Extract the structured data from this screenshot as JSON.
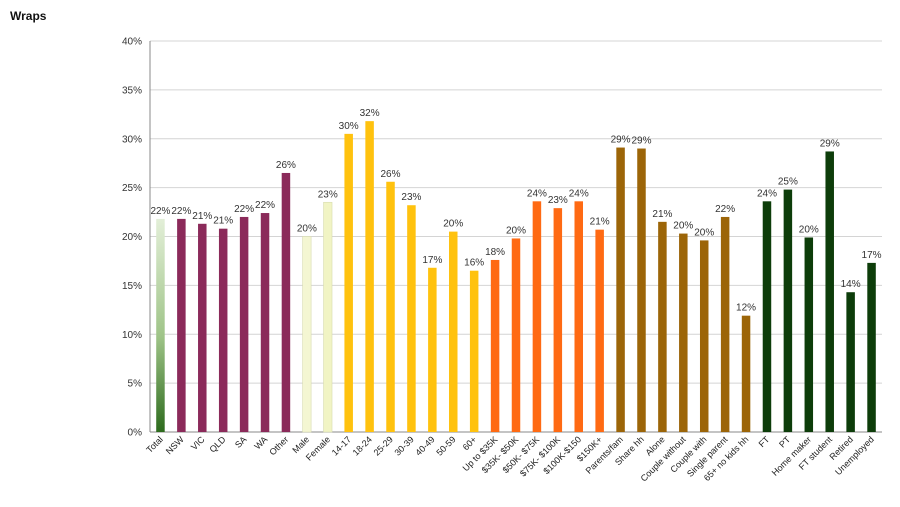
{
  "chart_data": {
    "type": "bar",
    "title": "Wraps",
    "xlabel": "",
    "ylabel": "",
    "ylim": [
      0,
      40
    ],
    "yticks": [
      "0%",
      "5%",
      "10%",
      "15%",
      "20%",
      "25%",
      "30%",
      "35%",
      "40%"
    ],
    "grid": true,
    "legend": "none",
    "categories": [
      "Total",
      "NSW",
      "VIC",
      "QLD",
      "SA",
      "WA",
      "Other",
      "Male",
      "Female",
      "14-17",
      "18-24",
      "25-29",
      "30-39",
      "40-49",
      "50-59",
      "60+",
      "Up to $35K",
      "$35K- $50K",
      "$50K- $75K",
      "$75K- $100K",
      "$100K-$150",
      "$150K+",
      "Parents/fam",
      "Share hh",
      "Alone",
      "Couple without",
      "Couple with",
      "Single parent",
      "65+ no kids hh",
      "FT",
      "PT",
      "Home maker",
      "FT student",
      "Retired",
      "Unemployed"
    ],
    "values": [
      21.8,
      21.8,
      21.3,
      20.8,
      22.0,
      22.4,
      26.5,
      20.0,
      23.5,
      30.5,
      31.8,
      25.6,
      23.2,
      16.8,
      20.5,
      16.5,
      17.6,
      19.8,
      23.6,
      22.9,
      23.6,
      20.7,
      29.1,
      29.0,
      21.5,
      20.3,
      19.6,
      22.0,
      11.9,
      23.6,
      24.8,
      19.9,
      28.7,
      14.3,
      17.3
    ],
    "data_labels": [
      "22%",
      "22%",
      "21%",
      "21%",
      "22%",
      "22%",
      "26%",
      "20%",
      "23%",
      "30%",
      "32%",
      "26%",
      "23%",
      "17%",
      "20%",
      "16%",
      "18%",
      "20%",
      "24%",
      "23%",
      "24%",
      "21%",
      "29%",
      "29%",
      "21%",
      "20%",
      "20%",
      "22%",
      "12%",
      "24%",
      "25%",
      "20%",
      "29%",
      "14%",
      "17%"
    ],
    "bar_colors": [
      "gradient-green",
      "#8b2a5a",
      "#8b2a5a",
      "#8b2a5a",
      "#8b2a5a",
      "#8b2a5a",
      "#8b2a5a",
      "#f4f6d2",
      "#f1f4c4",
      "#ffc20e",
      "#ffc20e",
      "#ffc20e",
      "#ffc20e",
      "#ffc20e",
      "#ffc20e",
      "#ffc20e",
      "#ff6a13",
      "#ff6a13",
      "#ff6a13",
      "#ff6a13",
      "#ff6a13",
      "#ff6a13",
      "#9c6508",
      "#9c6508",
      "#9c6508",
      "#9c6508",
      "#9c6508",
      "#9c6508",
      "#9c6508",
      "#0d3d0a",
      "#0d3d0a",
      "#0d3d0a",
      "#0d3d0a",
      "#0d3d0a",
      "#0d3d0a"
    ]
  }
}
